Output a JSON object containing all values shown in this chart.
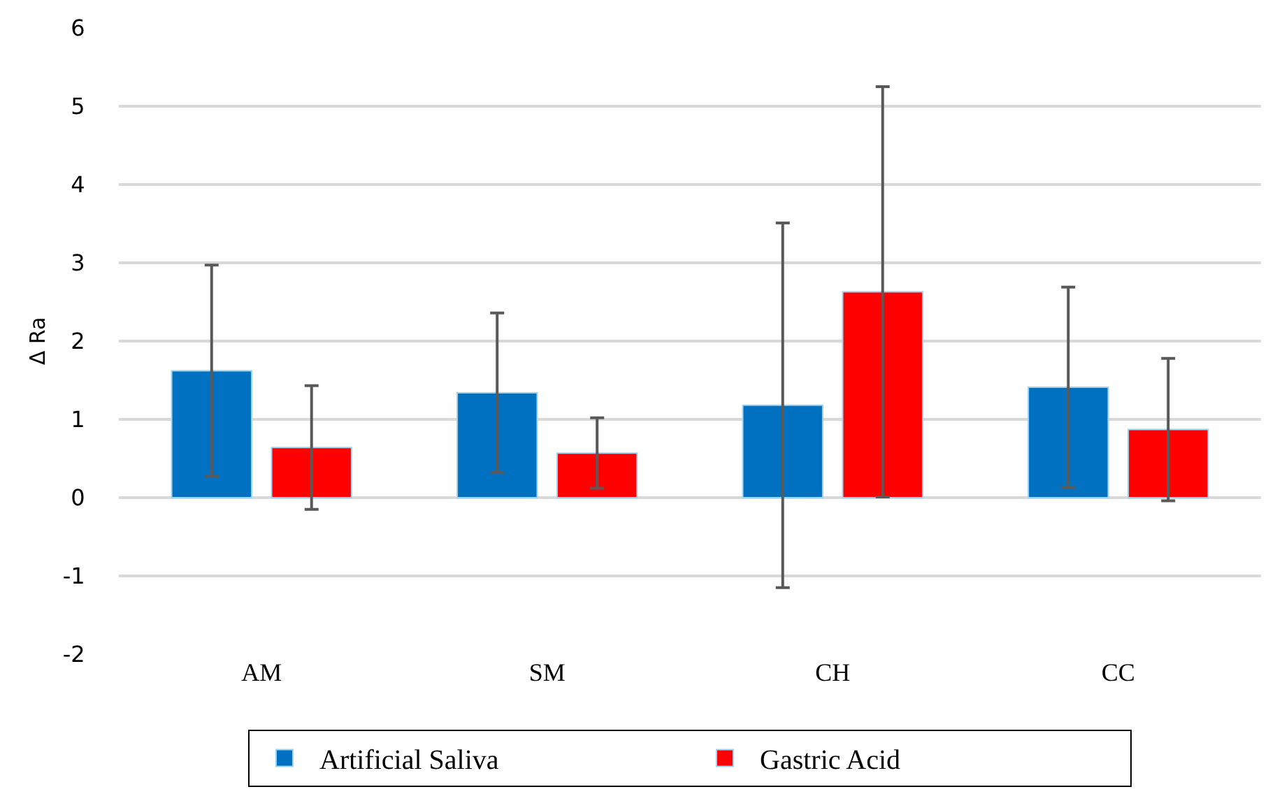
{
  "chart_data": {
    "type": "bar",
    "ylabel": "Δ Ra",
    "categories": [
      "AM",
      "SM",
      "CH",
      "CC"
    ],
    "series": [
      {
        "name": "Artificial Saliva",
        "color": "#0070c0",
        "values": [
          1.62,
          1.34,
          1.18,
          1.41
        ],
        "errors": [
          1.35,
          1.02,
          2.33,
          1.28
        ]
      },
      {
        "name": "Gastric Acid",
        "color": "#ff0000",
        "values": [
          0.64,
          0.57,
          2.63,
          0.87
        ],
        "errors": [
          0.79,
          0.45,
          2.62,
          0.91
        ]
      }
    ],
    "ylim": [
      -2,
      6
    ],
    "yticks": [
      -2,
      -1,
      0,
      1,
      2,
      3,
      4,
      5,
      6
    ],
    "grid": "y",
    "legend": "bottom"
  }
}
